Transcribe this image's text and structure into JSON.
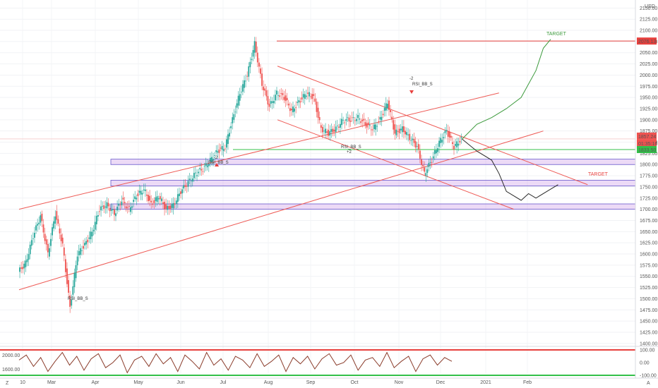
{
  "chart_data": {
    "type": "candlestick",
    "instrument_currency": "USD",
    "price_axis": {
      "unit": "USD",
      "ylim": [
        1395,
        2160
      ],
      "ticks": [
        2150,
        2125,
        2100,
        2075,
        2050,
        2025,
        2000,
        1975,
        1950,
        1925,
        1900,
        1875,
        1850,
        1825,
        1800,
        1775,
        1750,
        1725,
        1700,
        1675,
        1650,
        1625,
        1600,
        1575,
        1550,
        1525,
        1500,
        1475,
        1450,
        1425,
        1400
      ]
    },
    "time_axis": {
      "labels": [
        "10",
        "Mar",
        "Apr",
        "May",
        "Jun",
        "Jul",
        "Aug",
        "Sep",
        "Oct",
        "Nov",
        "Dec",
        "2021",
        "Feb"
      ]
    },
    "price_tags": {
      "target_level": "2076.13",
      "last_price": "1857.24",
      "countdown": "01:35:16",
      "support_tag": "1833.50"
    },
    "key_prices": {
      "target_level": 2076.13,
      "last_price": 1857.24,
      "support": 1833.5
    },
    "zones": [
      {
        "low": 1800,
        "high": 1812
      },
      {
        "low": 1752,
        "high": 1765
      },
      {
        "low": 1700,
        "high": 1712
      }
    ],
    "price_path": [
      [
        0,
        1560
      ],
      [
        1,
        1580
      ],
      [
        2,
        1640
      ],
      [
        3,
        1685
      ],
      [
        4,
        1600
      ],
      [
        5,
        1690
      ],
      [
        6,
        1620
      ],
      [
        7,
        1480
      ],
      [
        8,
        1600
      ],
      [
        9,
        1620
      ],
      [
        10,
        1650
      ],
      [
        11,
        1700
      ],
      [
        12,
        1710
      ],
      [
        13,
        1690
      ],
      [
        14,
        1720
      ],
      [
        15,
        1700
      ],
      [
        16,
        1730
      ],
      [
        17,
        1745
      ],
      [
        18,
        1710
      ],
      [
        19,
        1730
      ],
      [
        20,
        1700
      ],
      [
        21,
        1710
      ],
      [
        22,
        1740
      ],
      [
        23,
        1760
      ],
      [
        24,
        1780
      ],
      [
        25,
        1790
      ],
      [
        26,
        1810
      ],
      [
        27,
        1830
      ],
      [
        28,
        1840
      ],
      [
        29,
        1900
      ],
      [
        30,
        1960
      ],
      [
        31,
        2000
      ],
      [
        32,
        2070
      ],
      [
        33,
        1980
      ],
      [
        34,
        1930
      ],
      [
        35,
        1960
      ],
      [
        36,
        1950
      ],
      [
        37,
        1920
      ],
      [
        38,
        1940
      ],
      [
        39,
        1960
      ],
      [
        40,
        1950
      ],
      [
        41,
        1880
      ],
      [
        42,
        1870
      ],
      [
        43,
        1880
      ],
      [
        44,
        1900
      ],
      [
        45,
        1900
      ],
      [
        46,
        1905
      ],
      [
        47,
        1890
      ],
      [
        48,
        1880
      ],
      [
        49,
        1900
      ],
      [
        50,
        1940
      ],
      [
        51,
        1870
      ],
      [
        52,
        1880
      ],
      [
        53,
        1860
      ],
      [
        54,
        1840
      ],
      [
        55,
        1780
      ],
      [
        56,
        1810
      ],
      [
        57,
        1850
      ],
      [
        58,
        1875
      ],
      [
        59,
        1840
      ],
      [
        60,
        1857
      ]
    ],
    "projection_up": [
      [
        60,
        1857
      ],
      [
        62,
        1890
      ],
      [
        64,
        1905
      ],
      [
        66,
        1925
      ],
      [
        68,
        1950
      ],
      [
        70,
        2010
      ],
      [
        71,
        2060
      ],
      [
        72,
        2080
      ]
    ],
    "projection_down": [
      [
        60,
        1857
      ],
      [
        62,
        1830
      ],
      [
        64,
        1810
      ],
      [
        65,
        1780
      ],
      [
        66,
        1740
      ],
      [
        68,
        1720
      ],
      [
        69,
        1735
      ],
      [
        70,
        1725
      ],
      [
        72,
        1745
      ],
      [
        73,
        1755
      ]
    ],
    "annotations": [
      "RSI_BB_S",
      "-2",
      "RSI_BB_S",
      "-2",
      "RSI_BB_S",
      "+2",
      "RSI_BB_S",
      "TARGET",
      "TARGET"
    ],
    "oscillator": {
      "ticks": [
        "100.00",
        "0.00",
        "-100.00"
      ],
      "left_labels": [
        "2000.00",
        "1600.00"
      ],
      "values": [
        20,
        60,
        -30,
        40,
        -70,
        10,
        80,
        -20,
        50,
        -60,
        30,
        70,
        -40,
        0,
        60,
        -80,
        20,
        50,
        -30,
        70,
        -10,
        40,
        -70,
        60,
        10,
        -50,
        80,
        -20,
        30,
        -60,
        50,
        20,
        -40,
        70,
        -30,
        10,
        60,
        -70,
        40,
        -10,
        50,
        -50,
        30,
        70,
        -20,
        0,
        60,
        -60,
        20,
        40,
        -30,
        80,
        -40,
        10,
        50,
        -70,
        30,
        60,
        -20,
        40,
        10
      ]
    },
    "corner_labels": [
      "Z",
      "A"
    ],
    "grid": true
  }
}
